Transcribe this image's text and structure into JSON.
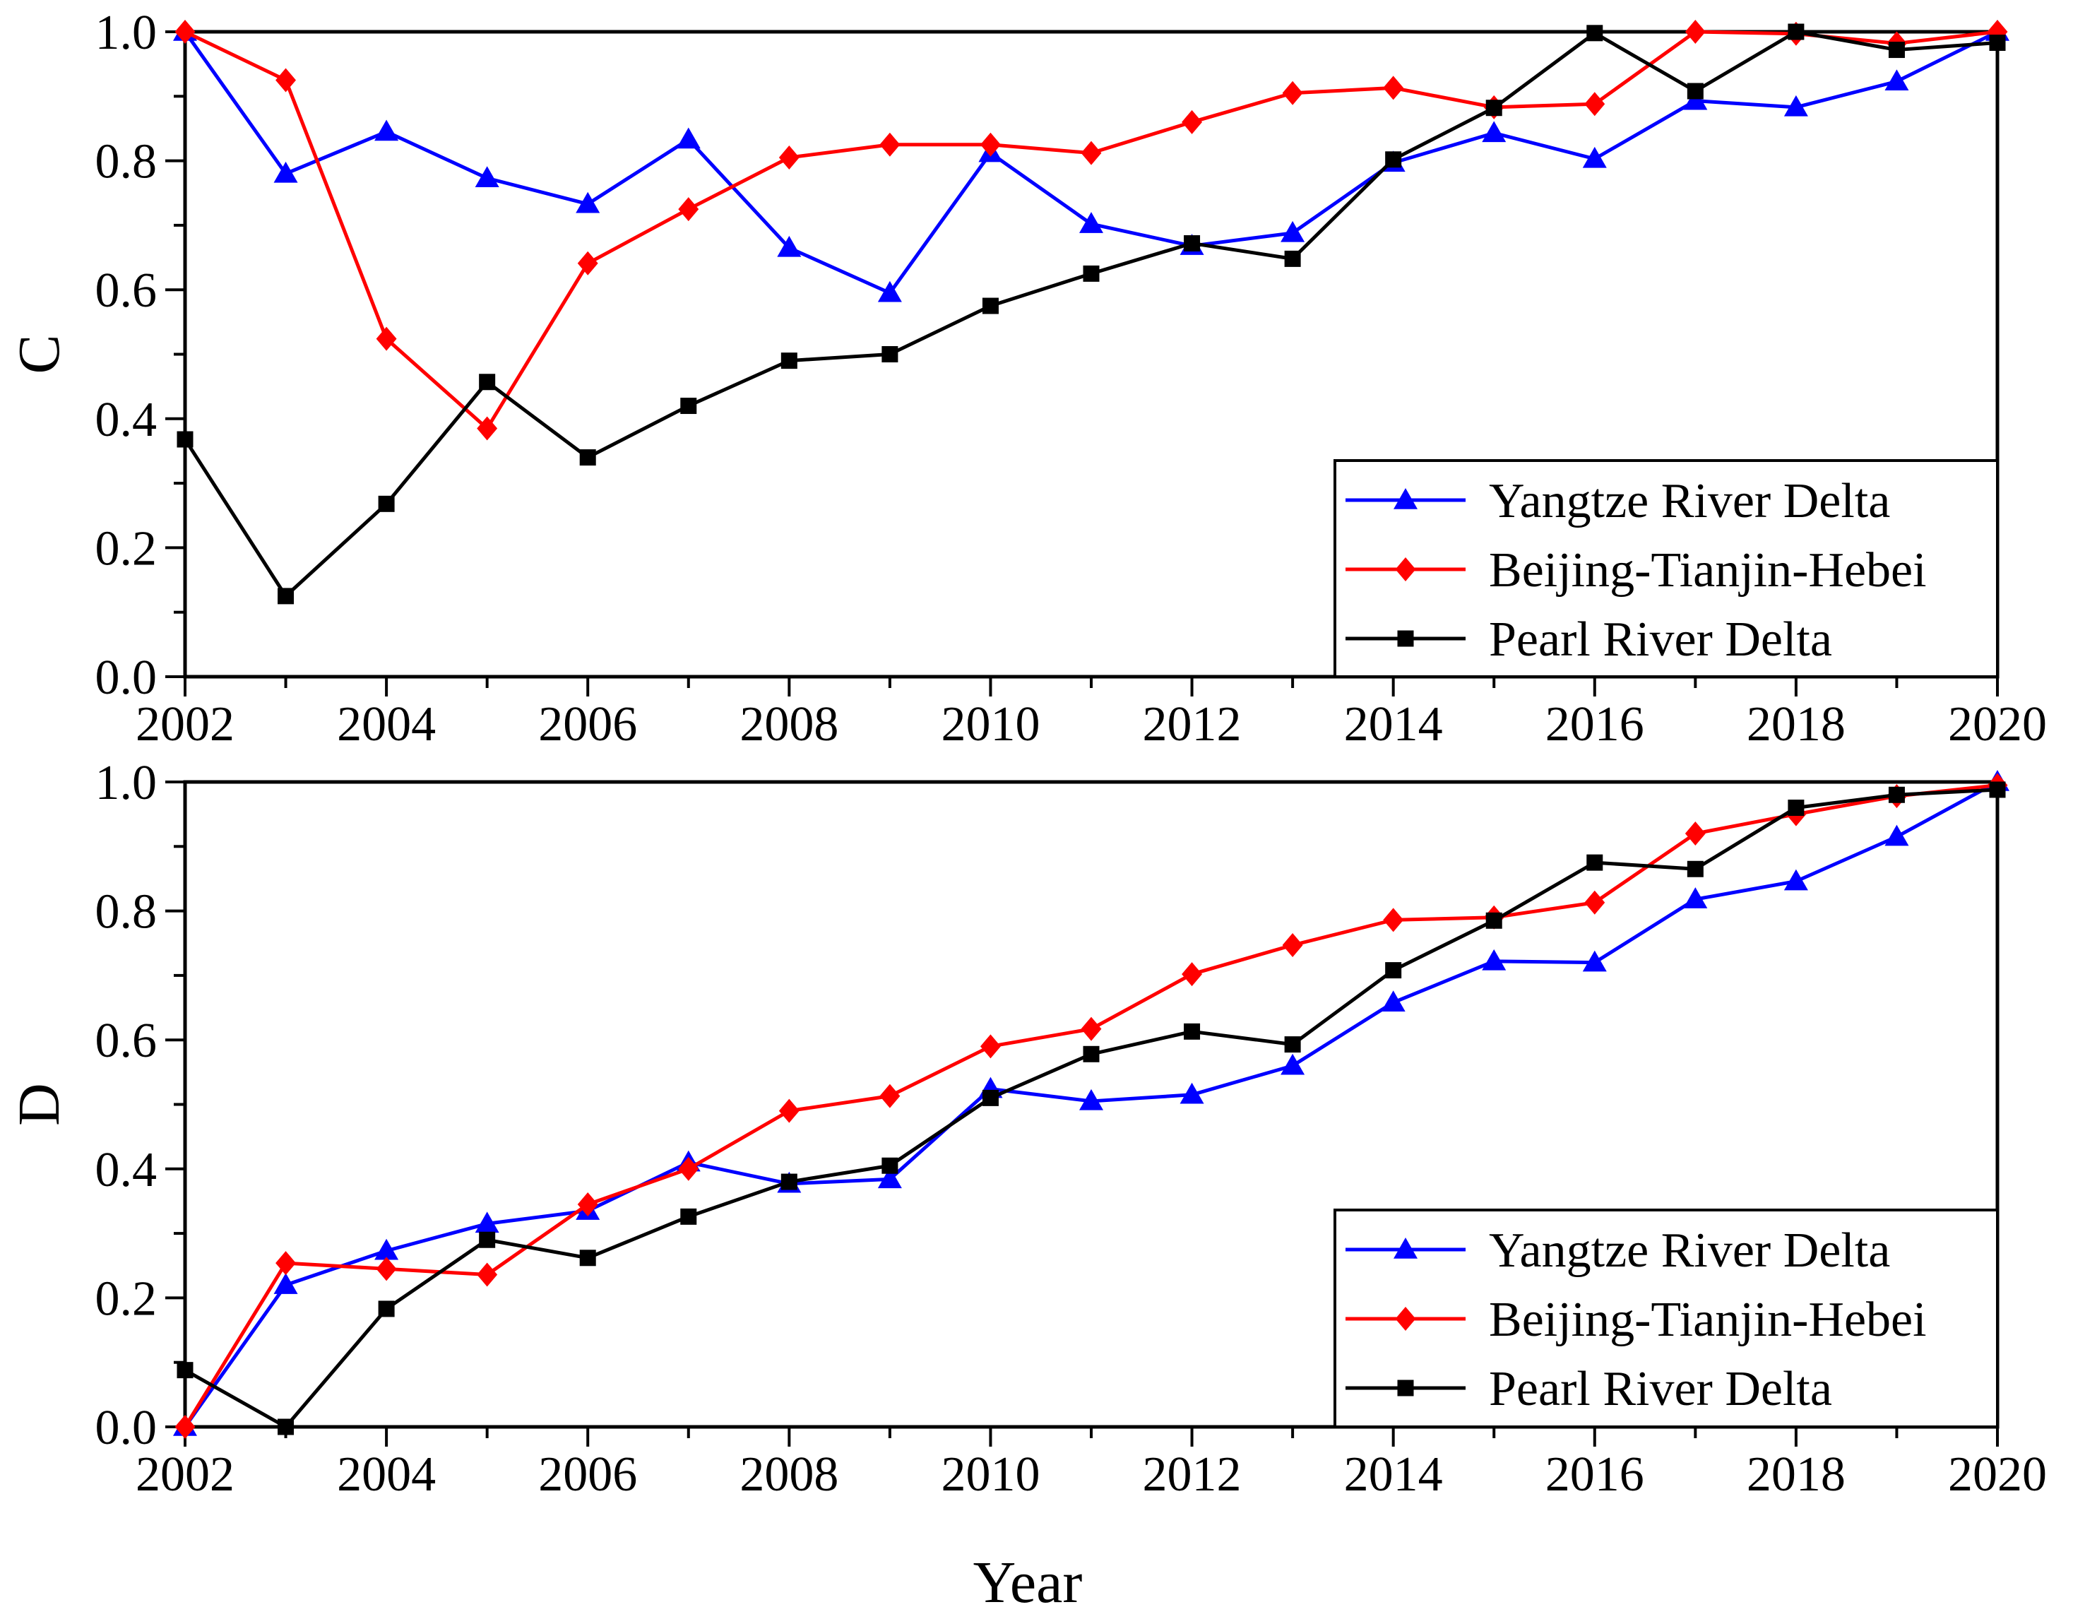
{
  "chart_data": [
    {
      "type": "line",
      "panel": "top",
      "ylabel": "C",
      "xlabel": "",
      "xlim": [
        2002,
        2020
      ],
      "ylim": [
        0.0,
        1.0
      ],
      "x_ticks": [
        "2002",
        "2004",
        "2006",
        "2008",
        "2010",
        "2012",
        "2014",
        "2016",
        "2018",
        "2020"
      ],
      "y_ticks": [
        "0.0",
        "0.2",
        "0.4",
        "0.6",
        "0.8",
        "1.0"
      ],
      "legend_position": "bottom-right",
      "x": [
        2002,
        2003,
        2004,
        2005,
        2006,
        2007,
        2008,
        2009,
        2010,
        2011,
        2012,
        2013,
        2014,
        2015,
        2016,
        2017,
        2018,
        2019,
        2020
      ],
      "series": [
        {
          "name": "Yangtze River Delta",
          "color": "#0000ff",
          "marker": "triangle",
          "values": [
            1.0,
            0.78,
            0.845,
            0.773,
            0.733,
            0.833,
            0.665,
            0.595,
            0.812,
            0.702,
            0.668,
            0.688,
            0.797,
            0.843,
            0.803,
            0.893,
            0.883,
            0.923,
            1.0
          ]
        },
        {
          "name": "Beijing-Tianjin-Hebei",
          "color": "#ff0000",
          "marker": "diamond",
          "values": [
            1.0,
            0.925,
            0.524,
            0.385,
            0.641,
            0.725,
            0.805,
            0.825,
            0.825,
            0.812,
            0.86,
            0.905,
            0.913,
            0.883,
            0.888,
            1.0,
            0.997,
            0.982,
            1.0
          ]
        },
        {
          "name": "Pearl River Delta",
          "color": "#000000",
          "marker": "square",
          "values": [
            0.368,
            0.125,
            0.268,
            0.457,
            0.34,
            0.42,
            0.49,
            0.5,
            0.575,
            0.625,
            0.672,
            0.648,
            0.802,
            0.882,
            0.998,
            0.908,
            1.0,
            0.972,
            0.983
          ]
        }
      ]
    },
    {
      "type": "line",
      "panel": "bottom",
      "ylabel": "D",
      "xlabel": "Year",
      "xlim": [
        2002,
        2020
      ],
      "ylim": [
        0.0,
        1.0
      ],
      "x_ticks": [
        "2002",
        "2004",
        "2006",
        "2008",
        "2010",
        "2012",
        "2014",
        "2016",
        "2018",
        "2020"
      ],
      "y_ticks": [
        "0.0",
        "0.2",
        "0.4",
        "0.6",
        "0.8",
        "1.0"
      ],
      "legend_position": "bottom-right",
      "x": [
        2002,
        2003,
        2004,
        2005,
        2006,
        2007,
        2008,
        2009,
        2010,
        2011,
        2012,
        2013,
        2014,
        2015,
        2016,
        2017,
        2018,
        2019,
        2020
      ],
      "series": [
        {
          "name": "Yangtze River Delta",
          "color": "#0000ff",
          "marker": "triangle",
          "values": [
            0.0,
            0.22,
            0.273,
            0.315,
            0.335,
            0.41,
            0.377,
            0.384,
            0.524,
            0.505,
            0.515,
            0.56,
            0.658,
            0.722,
            0.72,
            0.818,
            0.846,
            0.915,
            1.0
          ]
        },
        {
          "name": "Beijing-Tianjin-Hebei",
          "color": "#ff0000",
          "marker": "diamond",
          "values": [
            0.0,
            0.254,
            0.245,
            0.236,
            0.345,
            0.4,
            0.49,
            0.513,
            0.59,
            0.617,
            0.702,
            0.747,
            0.786,
            0.79,
            0.813,
            0.92,
            0.95,
            0.978,
            0.995
          ]
        },
        {
          "name": "Pearl River Delta",
          "color": "#000000",
          "marker": "square",
          "values": [
            0.088,
            0.0,
            0.183,
            0.29,
            0.262,
            0.326,
            0.38,
            0.405,
            0.51,
            0.578,
            0.613,
            0.593,
            0.708,
            0.785,
            0.875,
            0.865,
            0.96,
            0.98,
            0.988
          ]
        }
      ]
    }
  ]
}
